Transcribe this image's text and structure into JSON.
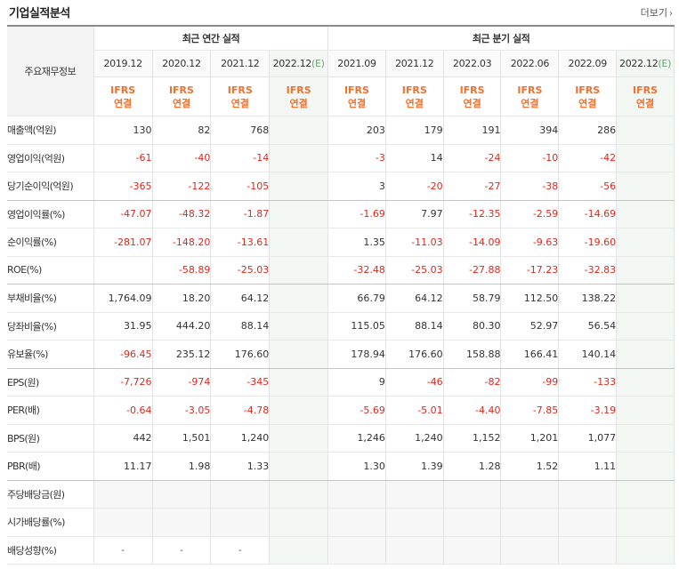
{
  "header": {
    "title": "기업실적분석",
    "more_label": "더보기",
    "more_icon": "chevron-right-icon"
  },
  "table": {
    "corner_label": "주요재무정보",
    "groups": {
      "annual": "최근 연간 실적",
      "quarter": "최근 분기 실적"
    },
    "annual_periods": [
      "2019.12",
      "2020.12",
      "2021.12",
      "2022.12"
    ],
    "quarter_periods": [
      "2021.09",
      "2021.12",
      "2022.03",
      "2022.06",
      "2022.09",
      "2022.12"
    ],
    "estimate_mark": "(E)",
    "ifrs_top": "IFRS",
    "ifrs_bottom": "연결",
    "rows": [
      {
        "label": "매출액(억원)",
        "values": [
          "130",
          "82",
          "768",
          "",
          "203",
          "179",
          "191",
          "394",
          "286",
          ""
        ]
      },
      {
        "label": "영업이익(억원)",
        "values": [
          "-61",
          "-40",
          "-14",
          "",
          "-3",
          "14",
          "-24",
          "-10",
          "-42",
          ""
        ]
      },
      {
        "label": "당기순이익(억원)",
        "values": [
          "-365",
          "-122",
          "-105",
          "",
          "3",
          "-20",
          "-27",
          "-38",
          "-56",
          ""
        ]
      },
      {
        "label": "영업이익률(%)",
        "values": [
          "-47.07",
          "-48.32",
          "-1.87",
          "",
          "-1.69",
          "7.97",
          "-12.35",
          "-2.59",
          "-14.69",
          ""
        ]
      },
      {
        "label": "순이익률(%)",
        "values": [
          "-281.07",
          "-148.20",
          "-13.61",
          "",
          "1.35",
          "-11.03",
          "-14.09",
          "-9.63",
          "-19.60",
          ""
        ]
      },
      {
        "label": "ROE(%)",
        "values": [
          "",
          "-58.89",
          "-25.03",
          "",
          "-32.48",
          "-25.03",
          "-27.88",
          "-17.23",
          "-32.83",
          ""
        ]
      },
      {
        "label": "부채비율(%)",
        "values": [
          "1,764.09",
          "18.20",
          "64.12",
          "",
          "66.79",
          "64.12",
          "58.79",
          "112.50",
          "138.22",
          ""
        ]
      },
      {
        "label": "당좌비율(%)",
        "values": [
          "31.95",
          "444.20",
          "88.14",
          "",
          "115.05",
          "88.14",
          "80.30",
          "52.97",
          "56.54",
          ""
        ]
      },
      {
        "label": "유보율(%)",
        "values": [
          "-96.45",
          "235.12",
          "176.60",
          "",
          "178.94",
          "176.60",
          "158.88",
          "166.41",
          "140.14",
          ""
        ]
      },
      {
        "label": "EPS(원)",
        "values": [
          "-7,726",
          "-974",
          "-345",
          "",
          "9",
          "-46",
          "-82",
          "-99",
          "-133",
          ""
        ]
      },
      {
        "label": "PER(배)",
        "values": [
          "-0.64",
          "-3.05",
          "-4.78",
          "",
          "-5.69",
          "-5.01",
          "-4.40",
          "-7.85",
          "-3.19",
          ""
        ]
      },
      {
        "label": "BPS(원)",
        "values": [
          "442",
          "1,501",
          "1,240",
          "",
          "1,246",
          "1,240",
          "1,152",
          "1,201",
          "1,077",
          ""
        ]
      },
      {
        "label": "PBR(배)",
        "values": [
          "11.17",
          "1.98",
          "1.33",
          "",
          "1.30",
          "1.39",
          "1.28",
          "1.52",
          "1.11",
          ""
        ]
      },
      {
        "label": "주당배당금(원)",
        "values": [
          "",
          "",
          "",
          "",
          "",
          "",
          "",
          "",
          "",
          ""
        ]
      },
      {
        "label": "시가배당률(%)",
        "values": [
          "",
          "",
          "",
          "",
          "",
          "",
          "",
          "",
          "",
          ""
        ]
      },
      {
        "label": "배당성향(%)",
        "values": [
          "-",
          "-",
          "-",
          "",
          "",
          "",
          "",
          "",
          "",
          ""
        ]
      }
    ],
    "colors": {
      "negative": "#e0271d",
      "ifrs": "#f0702f",
      "estimate_bg": "#f3f7f3",
      "estimate_mark": "#6aa56f"
    }
  }
}
